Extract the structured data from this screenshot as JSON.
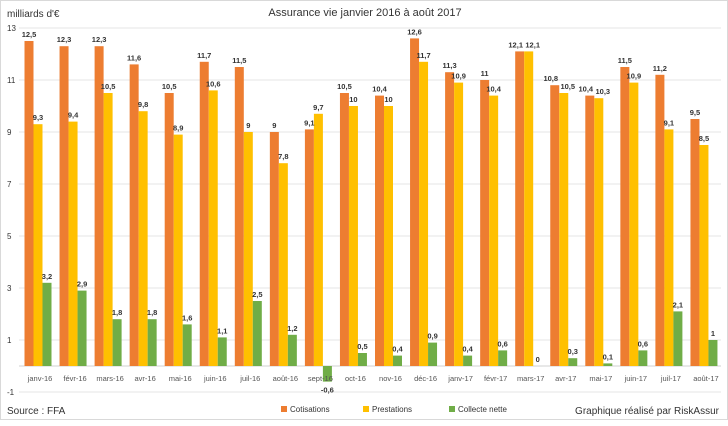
{
  "chart_data": {
    "type": "bar",
    "title": "Assurance vie janvier 2016 à août 2017",
    "ylabel": "milliards d'€",
    "xlabel": "",
    "ylim": [
      -1,
      13
    ],
    "yticks": [
      -1,
      1,
      3,
      5,
      7,
      9,
      11,
      13
    ],
    "grid": true,
    "legend_position": "bottom",
    "categories": [
      "janv-16",
      "févr-16",
      "mars-16",
      "avr-16",
      "mai-16",
      "juin-16",
      "juil-16",
      "août-16",
      "sept-16",
      "oct-16",
      "nov-16",
      "déc-16",
      "janv-17",
      "févr-17",
      "mars-17",
      "avr-17",
      "mai-17",
      "juin-17",
      "juil-17",
      "août-17"
    ],
    "series": [
      {
        "name": "Cotisations",
        "color": "#ED7D31",
        "values": [
          12.5,
          12.3,
          12.3,
          11.6,
          10.5,
          11.7,
          11.5,
          9,
          9.1,
          10.5,
          10.4,
          12.6,
          11.3,
          11,
          12.1,
          10.8,
          10.4,
          11.5,
          11.2,
          9.5
        ]
      },
      {
        "name": "Prestations",
        "color": "#FFC000",
        "values": [
          9.3,
          9.4,
          10.5,
          9.8,
          8.9,
          10.6,
          9,
          7.8,
          9.7,
          10,
          10,
          11.7,
          10.9,
          10.4,
          12.1,
          10.5,
          10.3,
          10.9,
          9.1,
          8.5
        ]
      },
      {
        "name": "Collecte nette",
        "color": "#70AD47",
        "values": [
          3.2,
          2.9,
          1.8,
          1.8,
          1.6,
          1.1,
          2.5,
          1.2,
          -0.6,
          0.5,
          0.4,
          0.9,
          0.4,
          0.6,
          0,
          0.3,
          0.1,
          0.6,
          2.1,
          1
        ]
      }
    ]
  },
  "footer": {
    "source": "Source : FFA",
    "credit": "Graphique réalisé par RiskAssur"
  }
}
